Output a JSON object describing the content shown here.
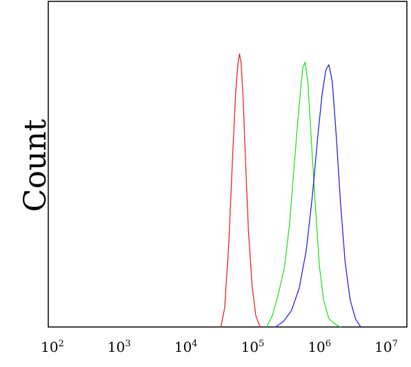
{
  "chart_data": {
    "type": "line",
    "title": "",
    "xlabel": "",
    "ylabel": "Count",
    "x_scale": "log",
    "xlim": [
      100,
      10000000
    ],
    "ylim": [
      0,
      1.0
    ],
    "grid": false,
    "legend": "none",
    "x_ticks": [
      {
        "base": "10",
        "exp": "2"
      },
      {
        "base": "10",
        "exp": "3"
      },
      {
        "base": "10",
        "exp": "4"
      },
      {
        "base": "10",
        "exp": "5"
      },
      {
        "base": "10",
        "exp": "6"
      },
      {
        "base": "10",
        "exp": "7"
      }
    ],
    "series": [
      {
        "color": "#e8202a",
        "x": [
          29000,
          33000,
          38000,
          43000,
          48000,
          52000,
          55000,
          58000,
          62000,
          68000,
          75000,
          85000,
          97000,
          112000
        ],
        "y": [
          0.0,
          0.07,
          0.3,
          0.6,
          0.85,
          0.96,
          1.0,
          0.97,
          0.85,
          0.6,
          0.35,
          0.15,
          0.04,
          0.0
        ]
      },
      {
        "color": "#22e022",
        "x": [
          140000,
          170000,
          210000,
          260000,
          310000,
          360000,
          410000,
          450000,
          490000,
          530000,
          580000,
          650000,
          750000,
          870000,
          1000000,
          1200000,
          1500000,
          1800000
        ],
        "y": [
          0.0,
          0.04,
          0.12,
          0.22,
          0.38,
          0.58,
          0.75,
          0.86,
          0.95,
          0.97,
          0.9,
          0.7,
          0.45,
          0.22,
          0.1,
          0.03,
          0.01,
          0.0
        ]
      },
      {
        "color": "#2222e0",
        "x": [
          190000,
          250000,
          330000,
          430000,
          550000,
          680000,
          820000,
          950000,
          1080000,
          1200000,
          1350000,
          1550000,
          1800000,
          2100000,
          2500000,
          3000000,
          3600000
        ],
        "y": [
          0.0,
          0.02,
          0.06,
          0.14,
          0.28,
          0.48,
          0.7,
          0.85,
          0.94,
          0.96,
          0.9,
          0.7,
          0.45,
          0.24,
          0.1,
          0.03,
          0.0
        ]
      }
    ]
  }
}
